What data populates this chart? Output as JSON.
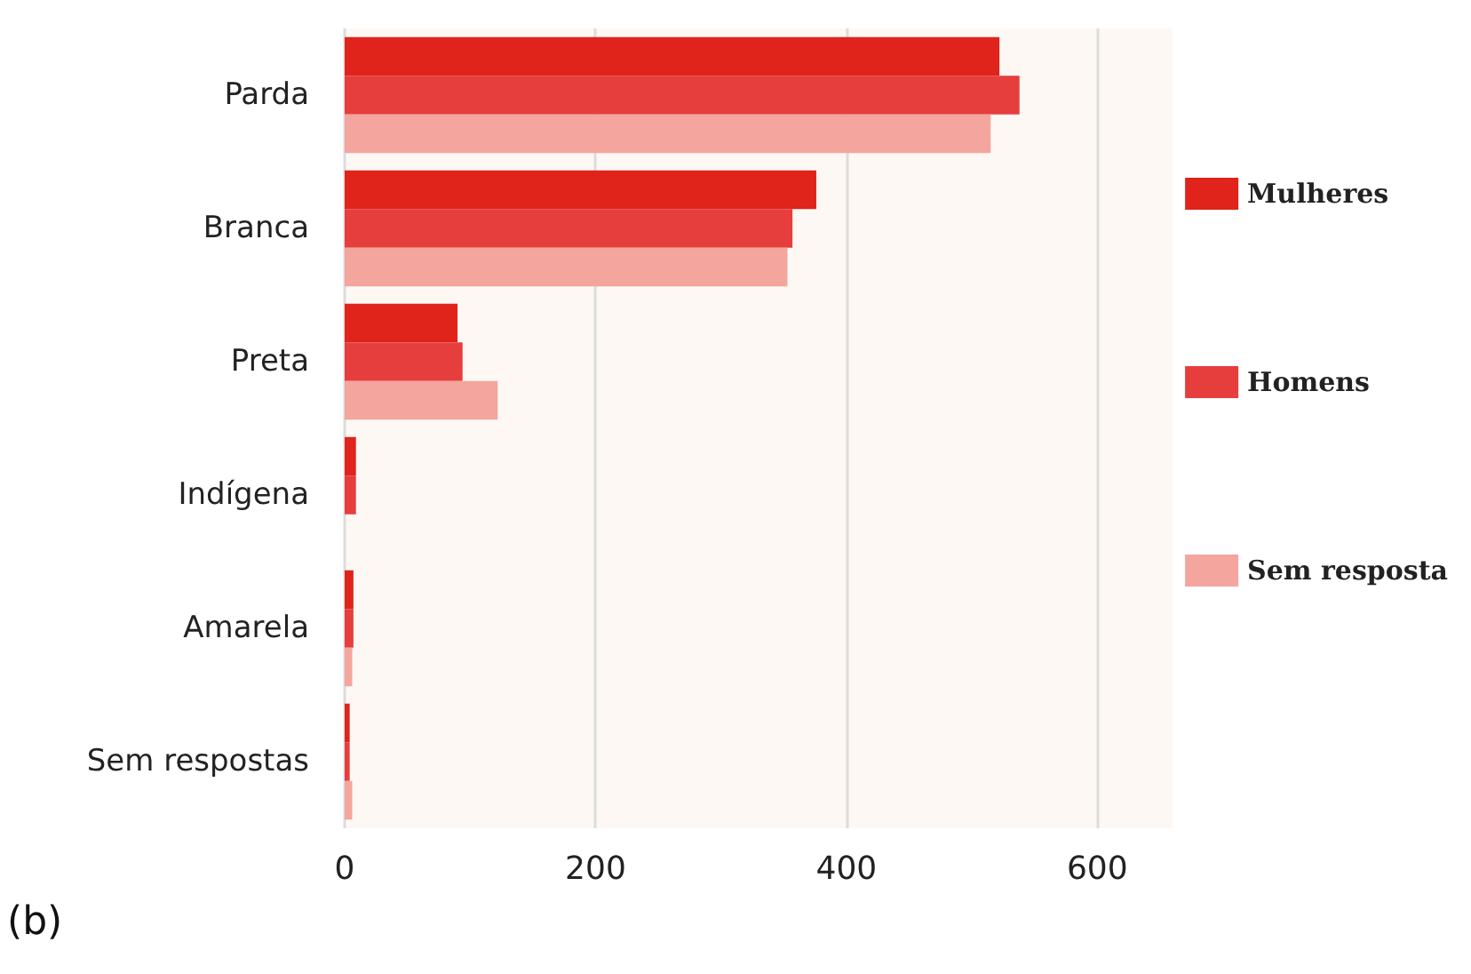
{
  "chart_data": {
    "type": "bar",
    "orientation": "horizontal",
    "categories": [
      "Parda",
      "Branca",
      "Preta",
      "Indígena",
      "Amarela",
      "Sem respostas"
    ],
    "series": [
      {
        "name": "Mulheres",
        "color": "#e0231b",
        "values": [
          522,
          376,
          90,
          9,
          7,
          4
        ]
      },
      {
        "name": "Homens",
        "color": "#e63e3d",
        "values": [
          538,
          357,
          94,
          9,
          7,
          4
        ]
      },
      {
        "name": "Sem resposta",
        "color": "#f4a59e",
        "values": [
          515,
          353,
          122,
          0,
          6,
          6
        ]
      }
    ],
    "xlim": [
      0,
      660
    ],
    "xticks": [
      0,
      200,
      400,
      600
    ],
    "grid": "x",
    "legend": "right",
    "annotations": [
      "(b)"
    ]
  }
}
